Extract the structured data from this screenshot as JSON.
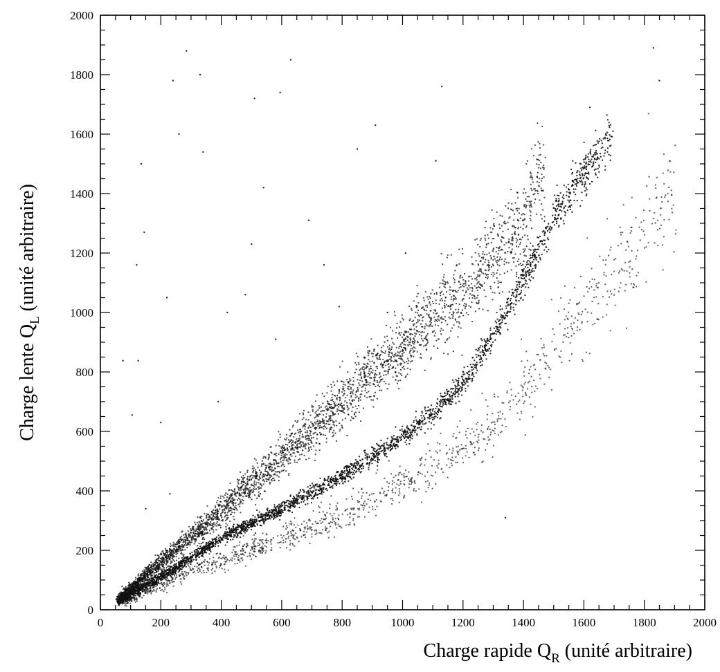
{
  "chart_data": {
    "type": "scatter",
    "title": "",
    "xlabel": {
      "main": "Charge rapide Q",
      "sub": "R",
      "tail": " (unité arbitraire)"
    },
    "ylabel": {
      "main": "Charge lente Q",
      "sub": "L",
      "tail": " (unité arbitraire)"
    },
    "xlim": [
      0,
      2000
    ],
    "ylim": [
      0,
      2000
    ],
    "x_ticks": [
      0,
      200,
      400,
      600,
      800,
      1000,
      1200,
      1400,
      1600,
      1800,
      2000
    ],
    "y_ticks": [
      0,
      200,
      400,
      600,
      800,
      1000,
      1200,
      1400,
      1600,
      1800,
      2000
    ],
    "grid": false,
    "legend": "none",
    "marker_color": "#111111",
    "series": [
      {
        "band": "upper",
        "curve": [
          [
            60,
            35
          ],
          [
            200,
            160
          ],
          [
            400,
            330
          ],
          [
            600,
            520
          ],
          [
            800,
            700
          ],
          [
            1000,
            880
          ],
          [
            1200,
            1070
          ],
          [
            1400,
            1300
          ],
          [
            1470,
            1500
          ]
        ],
        "x_range": [
          60,
          1470
        ],
        "point_count": 3400
      },
      {
        "band": "middle",
        "curve": [
          [
            60,
            30
          ],
          [
            200,
            110
          ],
          [
            400,
            240
          ],
          [
            600,
            340
          ],
          [
            800,
            450
          ],
          [
            1000,
            580
          ],
          [
            1100,
            660
          ],
          [
            1200,
            760
          ],
          [
            1300,
            920
          ],
          [
            1400,
            1110
          ],
          [
            1500,
            1320
          ],
          [
            1600,
            1470
          ],
          [
            1690,
            1600
          ]
        ],
        "x_range": [
          60,
          1690
        ],
        "point_count": 3000
      },
      {
        "band": "lower",
        "curve": [
          [
            80,
            30
          ],
          [
            300,
            130
          ],
          [
            600,
            240
          ],
          [
            800,
            320
          ],
          [
            1000,
            420
          ],
          [
            1200,
            540
          ],
          [
            1300,
            620
          ],
          [
            1400,
            740
          ],
          [
            1500,
            880
          ],
          [
            1600,
            1010
          ],
          [
            1700,
            1140
          ],
          [
            1800,
            1280
          ],
          [
            1900,
            1420
          ]
        ],
        "x_range": [
          80,
          1910
        ],
        "point_count": 1300
      }
    ],
    "outliers": [
      [
        75,
        838
      ],
      [
        105,
        655
      ],
      [
        125,
        838
      ],
      [
        135,
        1500
      ],
      [
        145,
        1270
      ],
      [
        120,
        1160
      ],
      [
        150,
        340
      ],
      [
        200,
        630
      ],
      [
        220,
        1050
      ],
      [
        230,
        390
      ],
      [
        240,
        1780
      ],
      [
        260,
        1600
      ],
      [
        285,
        1880
      ],
      [
        330,
        1800
      ],
      [
        340,
        1540
      ],
      [
        390,
        700
      ],
      [
        420,
        1000
      ],
      [
        480,
        1060
      ],
      [
        500,
        1230
      ],
      [
        510,
        1720
      ],
      [
        540,
        1420
      ],
      [
        580,
        910
      ],
      [
        595,
        1740
      ],
      [
        630,
        1850
      ],
      [
        690,
        1310
      ],
      [
        740,
        1160
      ],
      [
        790,
        1020
      ],
      [
        850,
        1550
      ],
      [
        950,
        1000
      ],
      [
        910,
        1630
      ],
      [
        1010,
        1200
      ],
      [
        1110,
        1510
      ],
      [
        1130,
        1760
      ],
      [
        1340,
        310
      ],
      [
        1620,
        1690
      ],
      [
        1830,
        1890
      ],
      [
        1850,
        1780
      ]
    ]
  }
}
